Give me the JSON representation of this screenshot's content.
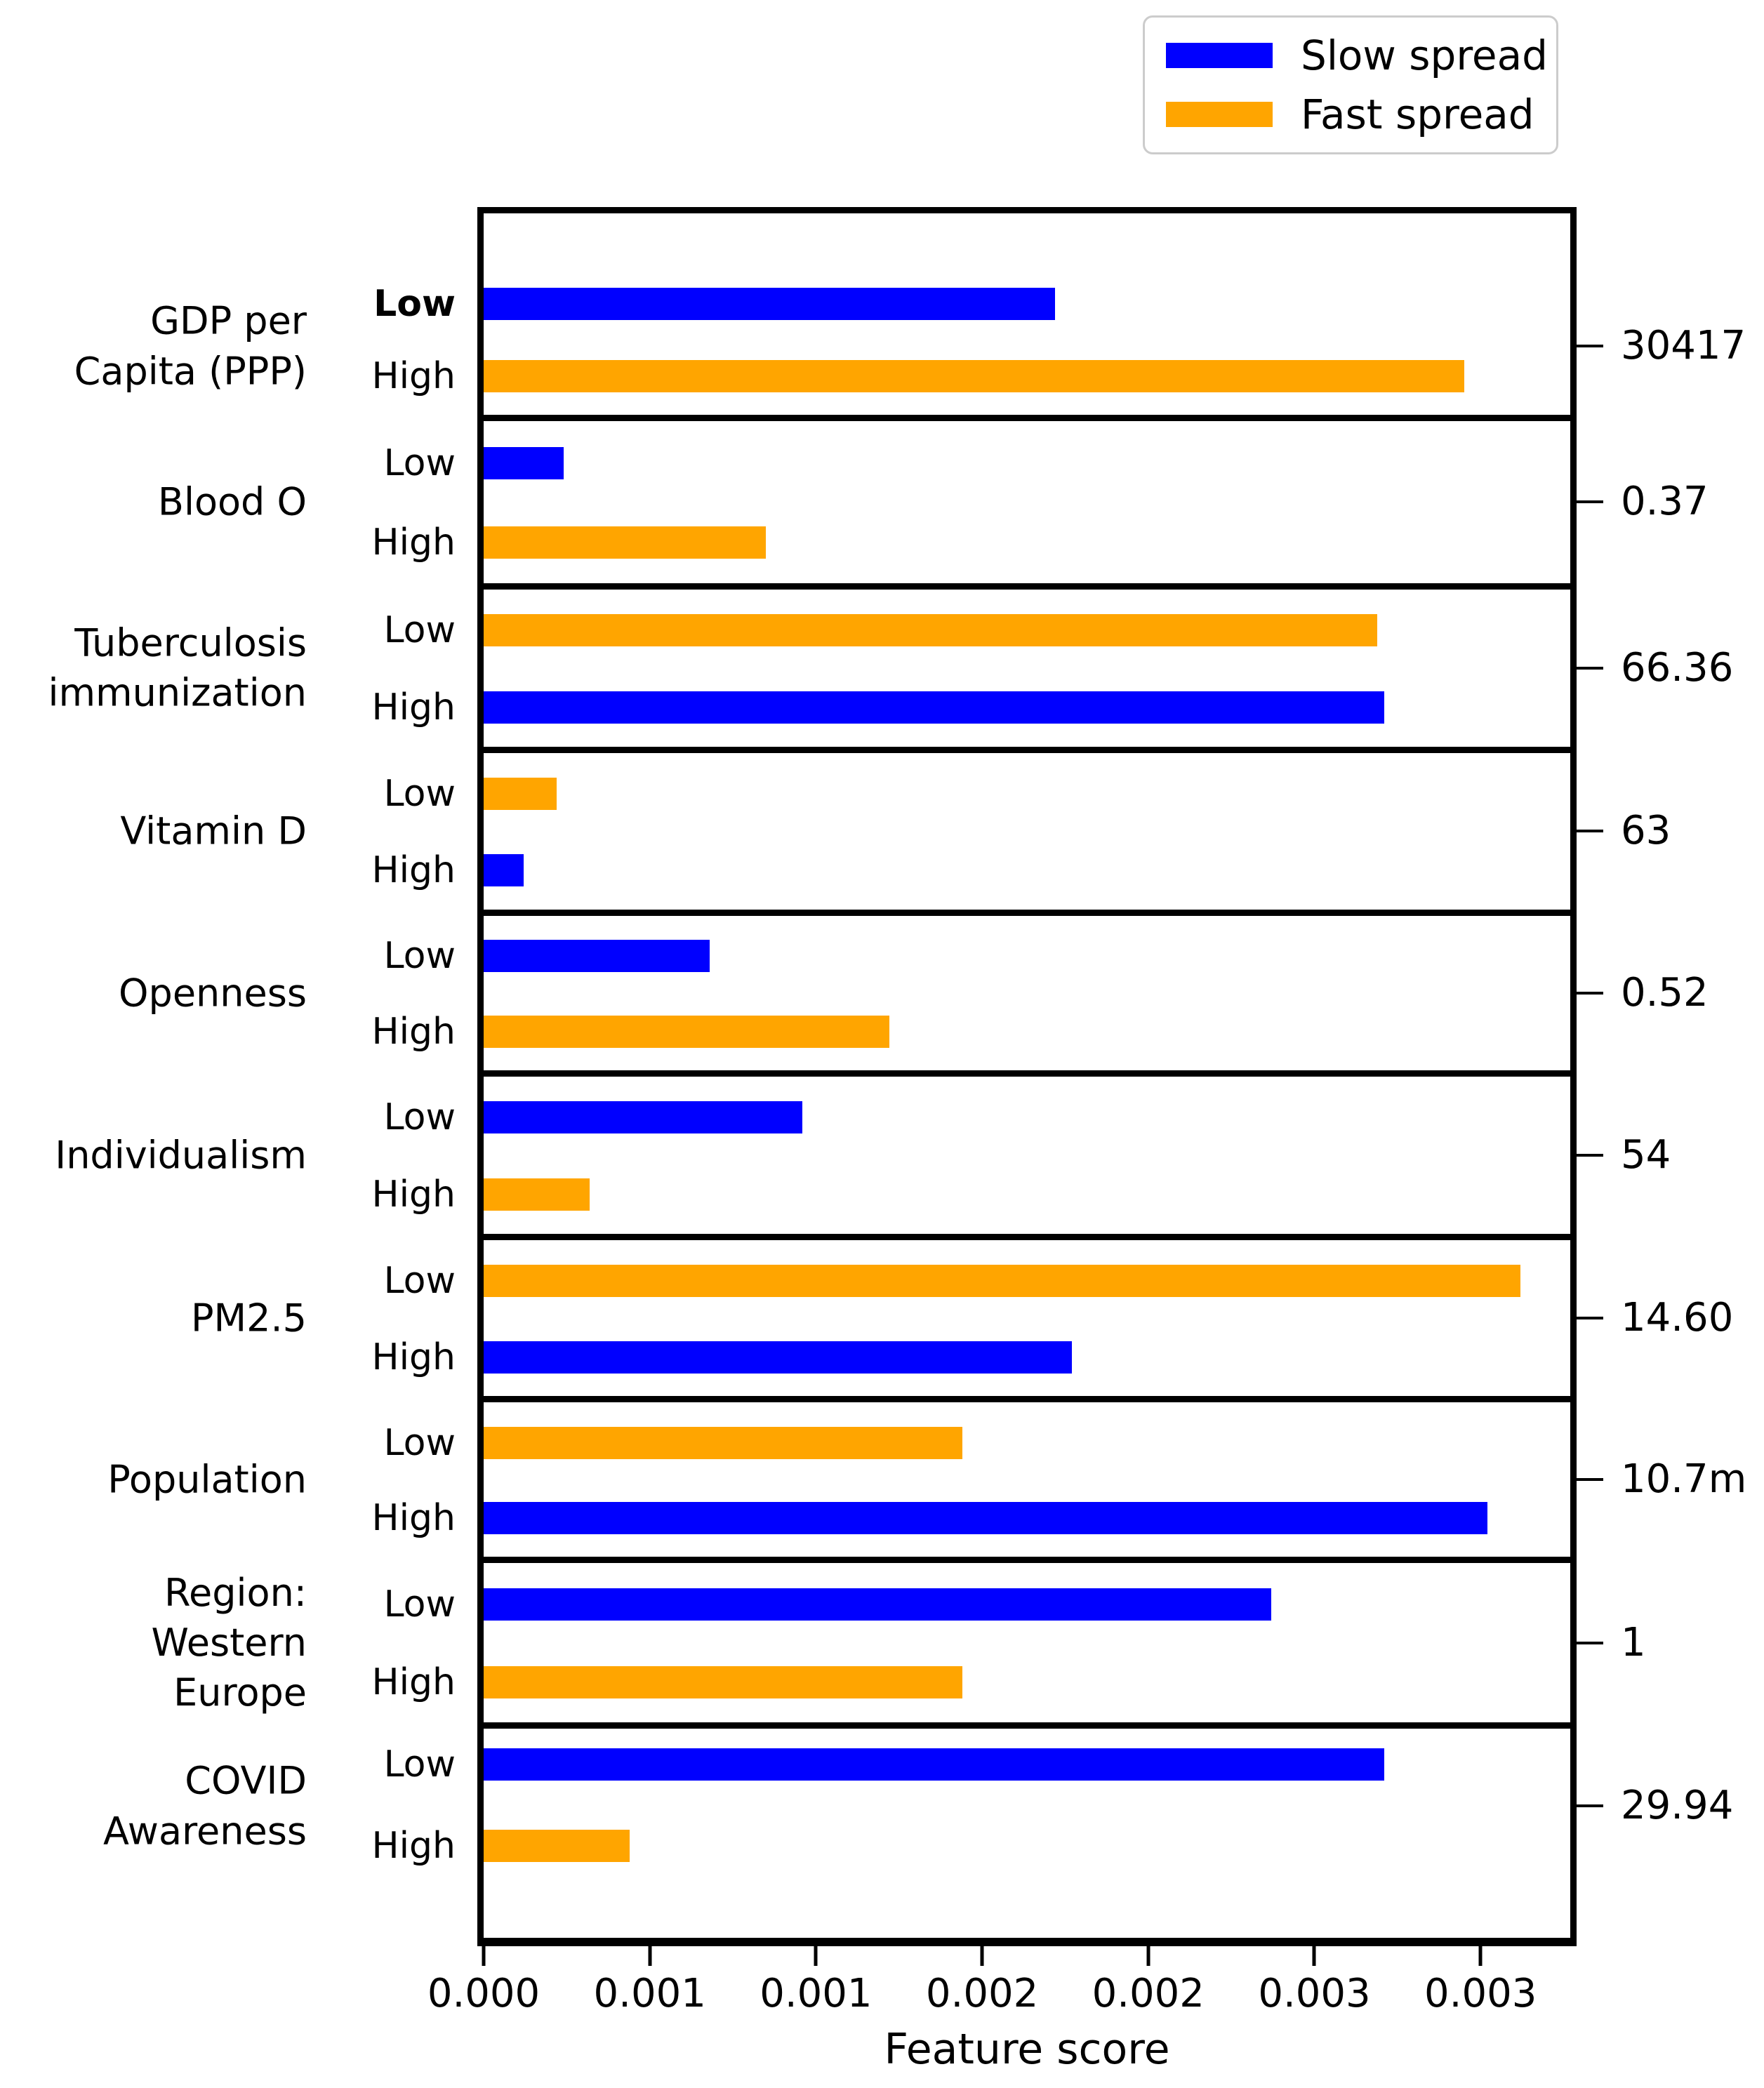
{
  "chart_data": {
    "type": "bar",
    "orientation": "horizontal",
    "xlabel": "Feature score",
    "xlim": [
      0,
      0.00327
    ],
    "grid": false,
    "legend_position": "top-right-outside",
    "legend": [
      {
        "name": "Slow spread",
        "color": "#0000ff"
      },
      {
        "name": "Fast spread",
        "color": "#ffa500"
      }
    ],
    "xticks": [
      {
        "value": 0.0,
        "label": "0.000"
      },
      {
        "value": 0.0005,
        "label": "0.001"
      },
      {
        "value": 0.001,
        "label": "0.001"
      },
      {
        "value": 0.0015,
        "label": "0.002"
      },
      {
        "value": 0.002,
        "label": "0.002"
      },
      {
        "value": 0.0025,
        "label": "0.003"
      },
      {
        "value": 0.003,
        "label": "0.003"
      }
    ],
    "panels": [
      {
        "feature": "GDP per Capita (PPP)",
        "label_lines": [
          "GDP per",
          "Capita (PPP)"
        ],
        "right_value": "30417",
        "bars": [
          {
            "level": "Low",
            "series": "Slow spread",
            "value": 0.00172,
            "bold_label": true
          },
          {
            "level": "High",
            "series": "Fast spread",
            "value": 0.00295
          }
        ]
      },
      {
        "feature": "Blood O",
        "label_lines": [
          "Blood O"
        ],
        "right_value": "0.37",
        "bars": [
          {
            "level": "Low",
            "series": "Slow spread",
            "value": 0.00024
          },
          {
            "level": "High",
            "series": "Fast spread",
            "value": 0.00085
          }
        ]
      },
      {
        "feature": "Tuberculosis immunization",
        "label_lines": [
          "Tuberculosis",
          "immunization"
        ],
        "right_value": "66.36",
        "bars": [
          {
            "level": "Low",
            "series": "Fast spread",
            "value": 0.00269
          },
          {
            "level": "High",
            "series": "Slow spread",
            "value": 0.00271
          }
        ]
      },
      {
        "feature": "Vitamin D",
        "label_lines": [
          "Vitamin D"
        ],
        "right_value": "63",
        "bars": [
          {
            "level": "Low",
            "series": "Fast spread",
            "value": 0.00022
          },
          {
            "level": "High",
            "series": "Slow spread",
            "value": 0.00012
          }
        ]
      },
      {
        "feature": "Openness",
        "label_lines": [
          "Openness"
        ],
        "right_value": "0.52",
        "bars": [
          {
            "level": "Low",
            "series": "Slow spread",
            "value": 0.00068
          },
          {
            "level": "High",
            "series": "Fast spread",
            "value": 0.00122
          }
        ]
      },
      {
        "feature": "Individualism",
        "label_lines": [
          "Individualism"
        ],
        "right_value": "54",
        "bars": [
          {
            "level": "Low",
            "series": "Slow spread",
            "value": 0.00096
          },
          {
            "level": "High",
            "series": "Fast spread",
            "value": 0.00032
          }
        ]
      },
      {
        "feature": "PM2.5",
        "label_lines": [
          "PM2.5"
        ],
        "right_value": "14.60",
        "bars": [
          {
            "level": "Low",
            "series": "Fast spread",
            "value": 0.00312
          },
          {
            "level": "High",
            "series": "Slow spread",
            "value": 0.00177
          }
        ]
      },
      {
        "feature": "Population",
        "label_lines": [
          "Population"
        ],
        "right_value": "10.7m",
        "bars": [
          {
            "level": "Low",
            "series": "Fast spread",
            "value": 0.00144
          },
          {
            "level": "High",
            "series": "Slow spread",
            "value": 0.00302
          }
        ]
      },
      {
        "feature": "Region: Western Europe",
        "label_lines": [
          "Region:",
          "Western",
          "Europe"
        ],
        "right_value": "1",
        "bars": [
          {
            "level": "Low",
            "series": "Slow spread",
            "value": 0.00237
          },
          {
            "level": "High",
            "series": "Fast spread",
            "value": 0.00144
          }
        ]
      },
      {
        "feature": "COVID Awareness",
        "label_lines": [
          "COVID",
          "Awareness"
        ],
        "right_value": "29.94",
        "bars": [
          {
            "level": "Low",
            "series": "Slow spread",
            "value": 0.00271
          },
          {
            "level": "High",
            "series": "Fast spread",
            "value": 0.00044
          }
        ]
      }
    ]
  }
}
